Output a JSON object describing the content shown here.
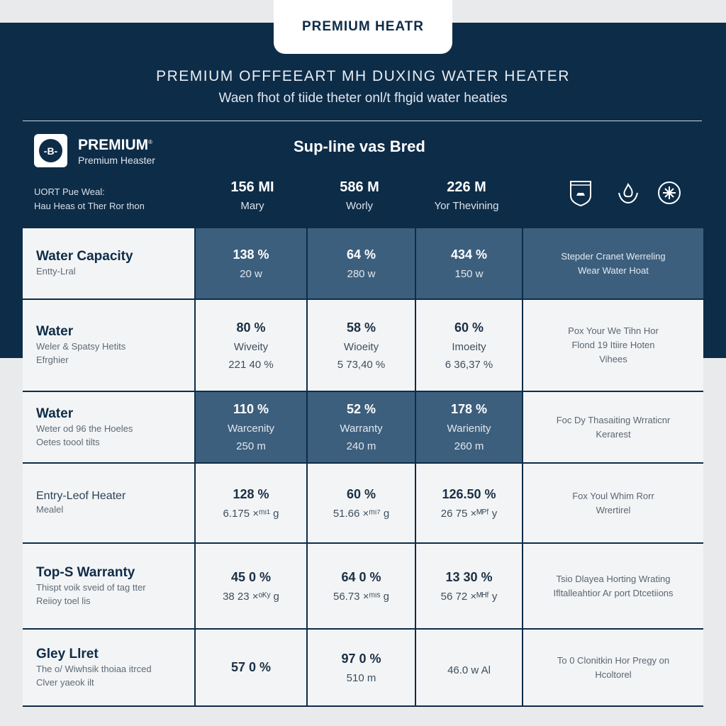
{
  "header": {
    "tab_title": "PREMIUM HEATR",
    "title": "PREMIUM OFFFEEART MH DUXING WATER HEATER",
    "subtitle": "Waen fhot of tiide theter onl/t fhgid water heaties"
  },
  "brand": {
    "name": "PREMIUM",
    "sub": "Premium Heaster",
    "logo_glyph": "-B-",
    "tagline": "Sup-line vas Bred"
  },
  "left_note": [
    "UORT Pue Weal:",
    "Hau Heas ot Ther Ror thon"
  ],
  "stats": [
    {
      "value": "156 MI",
      "label": "Mary"
    },
    {
      "value": "586 M",
      "label": "Worly"
    },
    {
      "value": "226 M",
      "label": "Yor Thevining"
    }
  ],
  "icons": [
    "shield-heater-icon",
    "flame-icon",
    "star-circle-icon"
  ],
  "colors": {
    "navy": "#0d2c48",
    "shaded": "#3d5f7e",
    "cell": "#f3f4f5"
  },
  "rows": [
    {
      "title": "Water Capacity",
      "sub": [
        "Entty-Lral"
      ],
      "dark": true,
      "cells": [
        [
          "138 %",
          "20 w"
        ],
        [
          "64 %",
          "280 w"
        ],
        [
          "434 %",
          "150 w"
        ]
      ],
      "note": [
        "Stepder Cranet Werreling",
        "Wear Water Hoat"
      ]
    },
    {
      "title": "Water",
      "sub": [
        "Weler & Spatsy Hetits",
        "Efrghier"
      ],
      "dark": false,
      "cells": [
        [
          "80 %",
          "Wiveity",
          "221 40 %"
        ],
        [
          "58 %",
          "Wioeity",
          "5 73,40 %"
        ],
        [
          "60 %",
          "Imoeity",
          "6 36,37 %"
        ]
      ],
      "note": [
        "Pox Your We Tihn Hor",
        "Flond 19 Itiire Hoten",
        "Vihees"
      ]
    },
    {
      "title": "Water",
      "sub": [
        "Weter od 96 the Hoeles",
        "Oetes toool tilts"
      ],
      "dark": true,
      "cells": [
        [
          "110 %",
          "Warcenity",
          "250 m"
        ],
        [
          "52 %",
          "Warranty",
          "240 m"
        ],
        [
          "178 %",
          "Warienity",
          "260 m"
        ]
      ],
      "note": [
        "Foc Dy Thasaiting Wrraticnr",
        "Kerarest"
      ],
      "note_light": true
    },
    {
      "title": "Entry-Leof Heater",
      "sub": [
        "Mealel"
      ],
      "light": true,
      "dark": false,
      "cells": [
        [
          "128 %",
          "6.175 ×ᵐᶦ¹ g"
        ],
        [
          "60 %",
          "51.66 ×ᵐᶦ⁷ g"
        ],
        [
          "126.50 %",
          "26 75 ×ᴹᴾᶠ y"
        ]
      ],
      "note": [
        "Fox Youl Whim Rorr",
        "Wrertirel"
      ]
    },
    {
      "title": "Top-S Warranty",
      "sub": [
        "Thispt voik sveid of tag tter",
        "Reiioy toel lis"
      ],
      "dark": false,
      "cells": [
        [
          "45 0 %",
          "38 23 ×ᵒᴷʸ g"
        ],
        [
          "64 0 %",
          "56.73 ×ᵐᶦˢ g"
        ],
        [
          "13 30 %",
          "56 72 ×ᴹᴴᶠ y"
        ]
      ],
      "note": [
        "Tsio Dlayea Horting Wrating",
        "Ifltalleahtior Ar port Dtcetiions"
      ]
    },
    {
      "title": "Gley Llret",
      "sub": [
        "The o/ Wiwhsik thoiaa itrced",
        "Clver yaeok ilt"
      ],
      "dark": false,
      "cells": [
        [
          "57 0 %"
        ],
        [
          "97 0 %",
          "510 m"
        ],
        [
          "46.0 w Al"
        ]
      ],
      "note": [
        "To 0 Clonitkin Hor Pregy on",
        "Hcoltorel"
      ]
    }
  ]
}
